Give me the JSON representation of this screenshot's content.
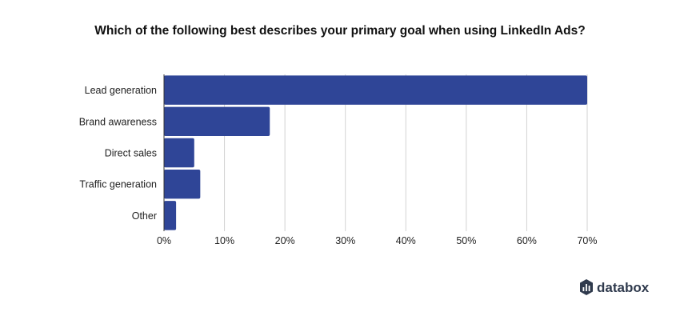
{
  "chart_data": {
    "type": "bar",
    "orientation": "horizontal",
    "title": "Which of the following best describes your primary goal when using LinkedIn Ads?",
    "xlabel": "",
    "ylabel": "",
    "categories": [
      "Lead generation",
      "Brand awareness",
      "Direct sales",
      "Traffic generation",
      "Other"
    ],
    "values": [
      70,
      17.5,
      5,
      6,
      2
    ],
    "xlim": [
      0,
      70
    ],
    "ticks": [
      0,
      10,
      20,
      30,
      40,
      50,
      60,
      70
    ],
    "tick_labels": [
      "0%",
      "10%",
      "20%",
      "30%",
      "40%",
      "50%",
      "60%",
      "70%"
    ],
    "grid": "vertical",
    "legend": "none",
    "bar_color": "#2f4597"
  },
  "branding": {
    "name": "databox",
    "icon": "databox-logo-icon",
    "color": "#2f3a4d"
  }
}
